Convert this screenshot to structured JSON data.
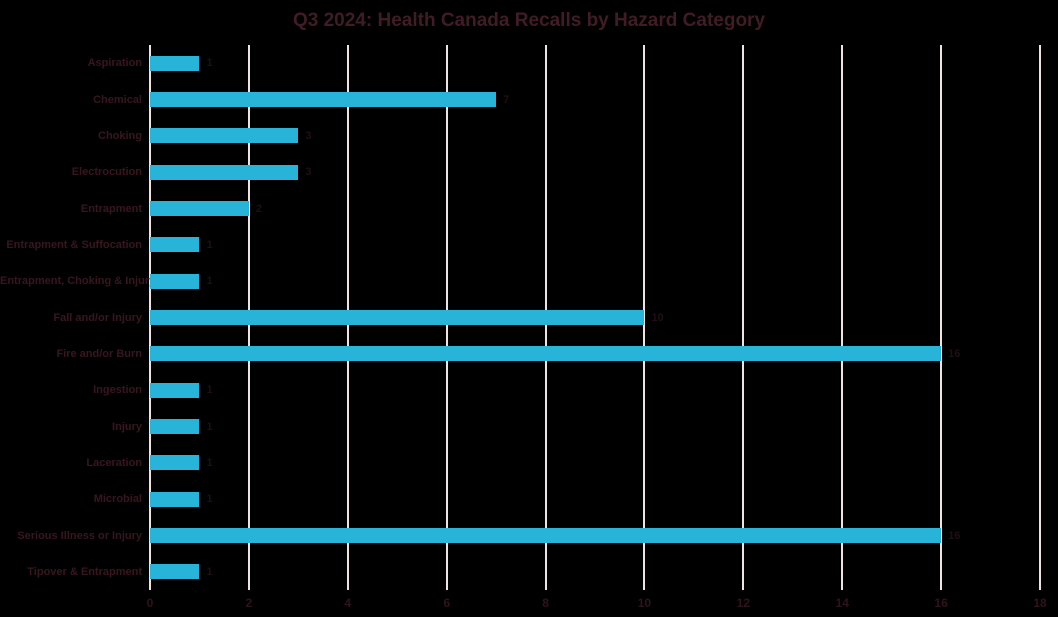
{
  "page": {
    "background": "#000000"
  },
  "chart_data": {
    "type": "bar",
    "orientation": "horizontal",
    "title": "Q3 2024: Health Canada Recalls by Hazard Category",
    "categories": [
      "Aspiration",
      "Chemical",
      "Choking",
      "Electrocution",
      "Entrapment",
      "Entrapment & Suffocation",
      "Entrapment, Choking & Injury",
      "Fall and/or Injury",
      "Fire and/or Burn",
      "Ingestion",
      "Injury",
      "Laceration",
      "Microbial",
      "Serious Illness or Injury",
      "Tipover & Entrapment"
    ],
    "values": [
      1,
      7,
      3,
      3,
      2,
      1,
      1,
      10,
      16,
      1,
      1,
      1,
      1,
      16,
      1
    ],
    "value_labels": [
      "1",
      "7",
      "3",
      "3",
      "2",
      "1",
      "1",
      "10",
      "16",
      "1",
      "1",
      "1",
      "1",
      "16",
      "1"
    ],
    "xlabel": "",
    "ylabel": "",
    "xlim": [
      0,
      18
    ],
    "x_ticks": [
      0,
      2,
      4,
      6,
      8,
      10,
      12,
      14,
      16,
      18
    ],
    "grid": "vertical-only",
    "legend": "none",
    "colors": {
      "background": "#000000",
      "bar": "#28b4d8",
      "gridline": "#f0e2e4",
      "title_text": "#401c27",
      "category_text": "#38161f",
      "tick_text": "#2e141c",
      "value_text": "#1f0f14"
    }
  }
}
